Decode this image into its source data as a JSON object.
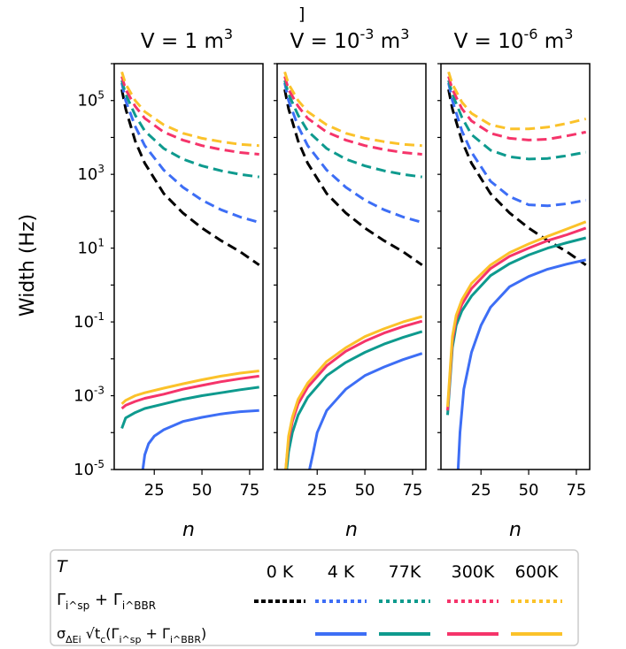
{
  "stray_mark": "]",
  "colors": {
    "0 K": "#000000",
    "4 K": "#3d6ef5",
    "77K": "#0e9a8e",
    "300K": "#f5346a",
    "600K": "#fbc22a"
  },
  "legend": {
    "header": "T",
    "temperatures": [
      "0 K",
      "4 K",
      "77K",
      "300K",
      "600K"
    ],
    "row1_label": "Γ_i^sp + Γ_i^BBR",
    "row1_style": "dotted",
    "row2_label": "σ_ΔEi √t_c(Γ_i^sp + Γ_i^BBR)",
    "row2_style": "solid"
  },
  "chart_data": [
    {
      "type": "line",
      "title": "V = 1 m^3",
      "xlabel": "n",
      "ylabel": "Width (Hz)",
      "yscale": "log",
      "xlim": [
        4,
        82
      ],
      "ylim": [
        1e-05,
        1000000.0
      ],
      "xticks": [
        "25",
        "50",
        "75"
      ],
      "yticks": [
        "10^5",
        "10^3",
        "10^1",
        "10^-1",
        "10^-3",
        "10^-5"
      ],
      "series": [
        {
          "name": "0 K",
          "style": "dashed",
          "x": [
            8,
            10,
            15,
            20,
            30,
            40,
            50,
            60,
            70,
            80
          ],
          "y": [
            200000,
            60000,
            8000,
            2000,
            300,
            90,
            35,
            16,
            8,
            3.5
          ]
        },
        {
          "name": "4 K",
          "style": "dashed",
          "x": [
            8,
            10,
            15,
            20,
            30,
            40,
            50,
            60,
            70,
            80
          ],
          "y": [
            300000,
            100000,
            20000,
            6000,
            1300,
            450,
            200,
            110,
            70,
            50
          ]
        },
        {
          "name": "77K",
          "style": "dashed",
          "x": [
            8,
            10,
            15,
            20,
            30,
            40,
            50,
            60,
            70,
            80
          ],
          "y": [
            350000,
            150000,
            40000,
            15000,
            5000,
            2600,
            1700,
            1250,
            1000,
            850
          ]
        },
        {
          "name": "300K",
          "style": "dashed",
          "x": [
            8,
            10,
            15,
            20,
            30,
            40,
            50,
            60,
            70,
            80
          ],
          "y": [
            450000,
            200000,
            70000,
            33000,
            14000,
            8500,
            6000,
            4700,
            3900,
            3500
          ]
        },
        {
          "name": "600K",
          "style": "dashed",
          "x": [
            8,
            10,
            15,
            20,
            30,
            40,
            50,
            60,
            70,
            80
          ],
          "y": [
            600000,
            280000,
            100000,
            50000,
            22000,
            13000,
            9500,
            7700,
            6500,
            6000
          ]
        },
        {
          "name": "4 K",
          "style": "solid",
          "x": [
            19,
            20,
            22,
            25,
            30,
            40,
            50,
            60,
            70,
            80
          ],
          "y": [
            1e-05,
            2.5e-05,
            5e-05,
            8e-05,
            0.00012,
            0.0002,
            0.00026,
            0.00032,
            0.00037,
            0.0004
          ]
        },
        {
          "name": "77K",
          "style": "solid",
          "x": [
            8,
            10,
            15,
            20,
            30,
            40,
            50,
            60,
            70,
            80
          ],
          "y": [
            0.00013,
            0.00025,
            0.00035,
            0.00045,
            0.0006,
            0.0008,
            0.001,
            0.0012,
            0.00145,
            0.0017
          ]
        },
        {
          "name": "300K",
          "style": "solid",
          "x": [
            8,
            10,
            15,
            20,
            30,
            40,
            50,
            60,
            70,
            80
          ],
          "y": [
            0.00045,
            0.00055,
            0.0007,
            0.00085,
            0.0011,
            0.0015,
            0.0019,
            0.0024,
            0.0029,
            0.0034
          ]
        },
        {
          "name": "600K",
          "style": "solid",
          "x": [
            8,
            10,
            15,
            20,
            30,
            40,
            50,
            60,
            70,
            80
          ],
          "y": [
            0.0006,
            0.00075,
            0.001,
            0.0012,
            0.0016,
            0.0021,
            0.0027,
            0.0034,
            0.0041,
            0.0047
          ]
        }
      ]
    },
    {
      "type": "line",
      "title": "V = 10^-3 m^3",
      "xlabel": "n",
      "yscale": "log",
      "xlim": [
        4,
        82
      ],
      "ylim": [
        1e-05,
        1000000.0
      ],
      "xticks": [
        "25",
        "50",
        "75"
      ],
      "series": [
        {
          "name": "0 K",
          "style": "dashed",
          "x": [
            8,
            10,
            15,
            20,
            30,
            40,
            50,
            60,
            70,
            80
          ],
          "y": [
            200000,
            60000,
            8000,
            2000,
            300,
            90,
            35,
            16,
            8,
            3.5
          ]
        },
        {
          "name": "4 K",
          "style": "dashed",
          "x": [
            8,
            10,
            15,
            20,
            30,
            40,
            50,
            60,
            70,
            80
          ],
          "y": [
            300000,
            100000,
            20000,
            6000,
            1300,
            450,
            200,
            110,
            70,
            50
          ]
        },
        {
          "name": "77K",
          "style": "dashed",
          "x": [
            8,
            10,
            15,
            20,
            30,
            40,
            50,
            60,
            70,
            80
          ],
          "y": [
            350000,
            150000,
            40000,
            15000,
            5000,
            2600,
            1700,
            1250,
            1000,
            850
          ]
        },
        {
          "name": "300K",
          "style": "dashed",
          "x": [
            8,
            10,
            15,
            20,
            30,
            40,
            50,
            60,
            70,
            80
          ],
          "y": [
            450000,
            200000,
            70000,
            33000,
            14000,
            8500,
            6000,
            4700,
            3900,
            3500
          ]
        },
        {
          "name": "600K",
          "style": "dashed",
          "x": [
            8,
            10,
            15,
            20,
            30,
            40,
            50,
            60,
            70,
            80
          ],
          "y": [
            600000,
            280000,
            100000,
            50000,
            22000,
            13000,
            9500,
            7700,
            6500,
            6000
          ]
        },
        {
          "name": "4 K",
          "style": "solid",
          "x": [
            21,
            23,
            25,
            30,
            40,
            50,
            60,
            70,
            80
          ],
          "y": [
            1e-05,
            3e-05,
            0.0001,
            0.0004,
            0.0015,
            0.0035,
            0.006,
            0.0095,
            0.014
          ]
        },
        {
          "name": "77K",
          "style": "solid",
          "x": [
            9,
            10,
            12,
            15,
            20,
            30,
            40,
            50,
            60,
            70,
            80
          ],
          "y": [
            1e-05,
            3e-05,
            0.0001,
            0.0003,
            0.0009,
            0.0035,
            0.008,
            0.015,
            0.025,
            0.038,
            0.055
          ]
        },
        {
          "name": "300K",
          "style": "solid",
          "x": [
            8.5,
            10,
            12,
            15,
            20,
            30,
            40,
            50,
            60,
            70,
            80
          ],
          "y": [
            1e-05,
            6e-05,
            0.0002,
            0.0006,
            0.0017,
            0.0065,
            0.016,
            0.03,
            0.05,
            0.075,
            0.105
          ]
        },
        {
          "name": "600K",
          "style": "solid",
          "x": [
            8.5,
            10,
            12,
            15,
            20,
            30,
            40,
            50,
            60,
            70,
            80
          ],
          "y": [
            1e-05,
            8e-05,
            0.00026,
            0.0008,
            0.0022,
            0.0085,
            0.02,
            0.04,
            0.065,
            0.1,
            0.14
          ]
        }
      ]
    },
    {
      "type": "line",
      "title": "V = 10^-6 m^3",
      "xlabel": "n",
      "yscale": "log",
      "xlim": [
        4,
        82
      ],
      "ylim": [
        1e-05,
        1000000.0
      ],
      "xticks": [
        "25",
        "50",
        "75"
      ],
      "series": [
        {
          "name": "0 K",
          "style": "dashed",
          "x": [
            8,
            10,
            15,
            20,
            30,
            40,
            50,
            60,
            70,
            80
          ],
          "y": [
            200000,
            60000,
            8000,
            2000,
            300,
            90,
            35,
            16,
            8,
            3.5
          ]
        },
        {
          "name": "4 K",
          "style": "dashed",
          "x": [
            8,
            10,
            15,
            20,
            30,
            40,
            50,
            60,
            70,
            80
          ],
          "y": [
            300000,
            100000,
            15000,
            4000,
            650,
            250,
            150,
            140,
            160,
            200
          ]
        },
        {
          "name": "77K",
          "style": "dashed",
          "x": [
            8,
            10,
            15,
            20,
            30,
            40,
            50,
            60,
            70,
            80
          ],
          "y": [
            350000,
            150000,
            35000,
            12000,
            4500,
            3000,
            2600,
            2700,
            3200,
            4000
          ]
        },
        {
          "name": "300K",
          "style": "dashed",
          "x": [
            8,
            10,
            15,
            20,
            30,
            40,
            50,
            60,
            70,
            80
          ],
          "y": [
            450000,
            200000,
            60000,
            28000,
            13000,
            9500,
            8500,
            9000,
            11000,
            14000
          ]
        },
        {
          "name": "600K",
          "style": "dashed",
          "x": [
            8,
            10,
            15,
            20,
            30,
            40,
            50,
            60,
            70,
            80
          ],
          "y": [
            600000,
            280000,
            90000,
            45000,
            22000,
            17000,
            17000,
            19000,
            24000,
            32000
          ]
        },
        {
          "name": "4 K",
          "style": "solid",
          "x": [
            13,
            14,
            16,
            20,
            25,
            30,
            40,
            50,
            60,
            70,
            80
          ],
          "y": [
            1e-05,
            0.0001,
            0.0015,
            0.015,
            0.08,
            0.25,
            0.9,
            1.7,
            2.7,
            3.7,
            4.8
          ]
        },
        {
          "name": "77K",
          "style": "solid",
          "x": [
            7.5,
            10,
            12,
            15,
            20,
            30,
            40,
            50,
            60,
            70,
            80
          ],
          "y": [
            0.0003,
            0.02,
            0.08,
            0.2,
            0.5,
            1.8,
            3.8,
            6.5,
            10,
            14,
            19
          ]
        },
        {
          "name": "300K",
          "style": "solid",
          "x": [
            7.5,
            10,
            12,
            15,
            20,
            30,
            40,
            50,
            60,
            70,
            80
          ],
          "y": [
            0.0004,
            0.03,
            0.12,
            0.3,
            0.8,
            2.8,
            6,
            10,
            16,
            23,
            35
          ]
        },
        {
          "name": "600K",
          "style": "solid",
          "x": [
            7.5,
            10,
            12,
            15,
            20,
            30,
            40,
            50,
            60,
            70,
            80
          ],
          "y": [
            0.0005,
            0.04,
            0.15,
            0.4,
            1.1,
            3.5,
            7.5,
            13,
            21,
            33,
            52
          ]
        }
      ]
    }
  ]
}
